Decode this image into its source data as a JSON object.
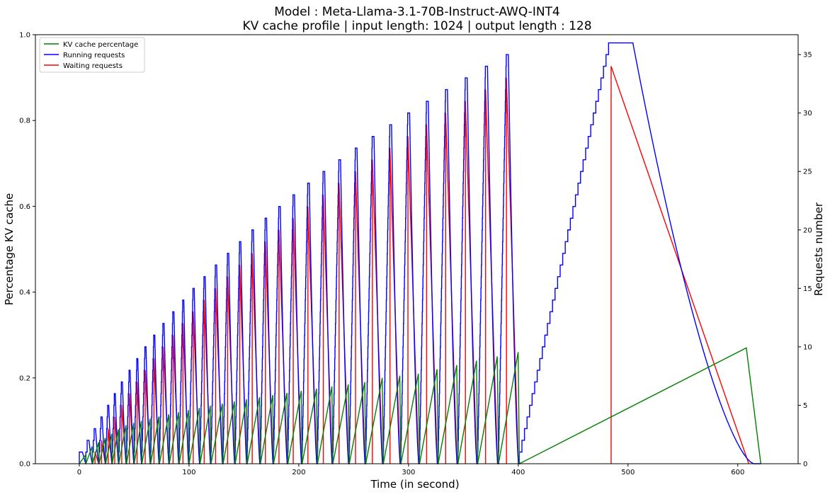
{
  "chart_data": {
    "type": "line",
    "title_lines": [
      "Model : Meta-Llama-3.1-70B-Instruct-AWQ-INT4",
      "KV cache profile | input length: 1024 | output length : 128"
    ],
    "xlabel": "Time (in second)",
    "ylabel_left": "Percentage KV cache",
    "ylabel_right": "Requests number",
    "xlim": [
      -40,
      655
    ],
    "ylim_left": [
      0,
      1.0
    ],
    "ylim_right": [
      0,
      36.7
    ],
    "x_ticks": [
      "0",
      "100",
      "200",
      "300",
      "400",
      "500",
      "600"
    ],
    "y_left_ticks": [
      "0.0",
      "0.2",
      "0.4",
      "0.6",
      "0.8",
      "1.0"
    ],
    "y_right_ticks": [
      "0",
      "5",
      "10",
      "15",
      "20",
      "25",
      "30",
      "35"
    ],
    "legend_position": "top-left",
    "grid": false,
    "series": [
      {
        "name": "KV cache percentage",
        "color": "#008000",
        "axis": "left",
        "description": "sawtooth per cycle, peaks rising from ~0.02 to ~0.27"
      },
      {
        "name": "Running requests",
        "color": "#0000ff",
        "axis": "right",
        "description": "stepped ramp 0 to N per cycle, N = 1..36"
      },
      {
        "name": "Waiting requests",
        "color": "#ff0000",
        "axis": "right",
        "description": "spike to N-2 then linear decay to 0 per cycle"
      }
    ],
    "cycles": {
      "count": 36,
      "start_times_s": [
        0,
        6,
        12,
        18,
        24,
        30,
        36,
        43,
        50,
        57,
        65,
        73,
        82,
        91,
        100,
        110,
        120,
        131,
        142,
        153,
        165,
        177,
        190,
        203,
        217,
        231,
        246,
        261,
        277,
        293,
        310,
        327,
        345,
        363,
        382,
        401
      ],
      "end_time_s": 621,
      "peak_running": [
        1,
        2,
        3,
        4,
        5,
        6,
        7,
        8,
        9,
        10,
        11,
        12,
        13,
        14,
        15,
        16,
        17,
        18,
        19,
        20,
        21,
        22,
        23,
        24,
        25,
        26,
        27,
        28,
        29,
        30,
        31,
        32,
        33,
        34,
        35,
        36
      ],
      "peak_waiting": [
        0,
        0,
        1,
        2,
        3,
        4,
        5,
        6,
        7,
        8,
        9,
        10,
        11,
        12,
        13,
        14,
        15,
        16,
        17,
        18,
        19,
        20,
        21,
        22,
        23,
        24,
        25,
        26,
        27,
        28,
        29,
        30,
        31,
        32,
        33,
        34
      ],
      "peak_kv": [
        0.02,
        0.04,
        0.05,
        0.06,
        0.07,
        0.08,
        0.09,
        0.095,
        0.1,
        0.105,
        0.11,
        0.115,
        0.12,
        0.125,
        0.13,
        0.135,
        0.14,
        0.145,
        0.15,
        0.155,
        0.16,
        0.165,
        0.17,
        0.175,
        0.18,
        0.185,
        0.19,
        0.2,
        0.205,
        0.21,
        0.22,
        0.23,
        0.24,
        0.25,
        0.26,
        0.27
      ]
    }
  }
}
